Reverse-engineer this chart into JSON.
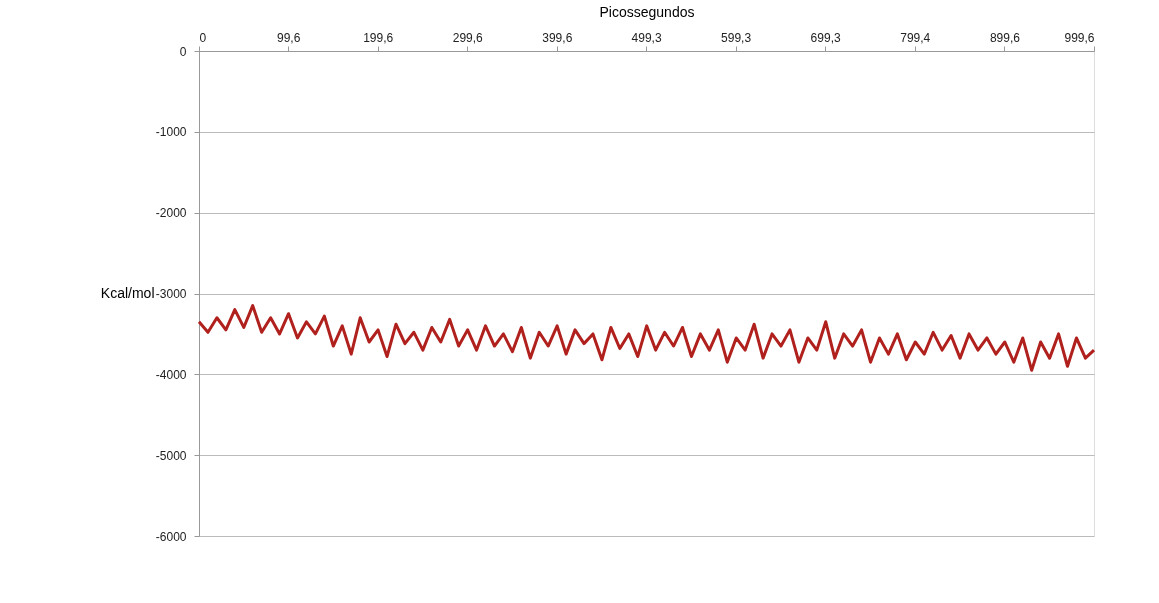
{
  "chart_data": {
    "type": "line",
    "xlabel": "Picossegundos",
    "ylabel": "Kcal/mol",
    "x": [
      0,
      10,
      20,
      30,
      40,
      50,
      60,
      70,
      80,
      90,
      100,
      110,
      120,
      130,
      140,
      150,
      160,
      170,
      180,
      190,
      200,
      210,
      220,
      230,
      240,
      250,
      260,
      270,
      280,
      290,
      300,
      310,
      320,
      330,
      340,
      350,
      360,
      370,
      380,
      390,
      400,
      410,
      420,
      430,
      440,
      450,
      460,
      470,
      480,
      490,
      500,
      510,
      520,
      530,
      540,
      550,
      560,
      570,
      580,
      590,
      600,
      610,
      620,
      630,
      640,
      650,
      660,
      670,
      680,
      690,
      700,
      710,
      720,
      730,
      740,
      750,
      760,
      770,
      780,
      790,
      800,
      810,
      820,
      830,
      840,
      850,
      860,
      870,
      880,
      890,
      900,
      910,
      920,
      930,
      940,
      950,
      960,
      970,
      980,
      990,
      999.6
    ],
    "series": [
      {
        "color": "#b0201c",
        "values": [
          -3350,
          -3480,
          -3300,
          -3450,
          -3200,
          -3420,
          -3150,
          -3480,
          -3300,
          -3500,
          -3250,
          -3550,
          -3350,
          -3500,
          -3280,
          -3650,
          -3400,
          -3750,
          -3300,
          -3600,
          -3450,
          -3780,
          -3380,
          -3620,
          -3480,
          -3700,
          -3420,
          -3600,
          -3320,
          -3650,
          -3450,
          -3700,
          -3400,
          -3650,
          -3500,
          -3720,
          -3420,
          -3800,
          -3480,
          -3650,
          -3400,
          -3750,
          -3450,
          -3620,
          -3500,
          -3820,
          -3420,
          -3680,
          -3500,
          -3780,
          -3400,
          -3700,
          -3480,
          -3650,
          -3420,
          -3780,
          -3500,
          -3700,
          -3450,
          -3850,
          -3550,
          -3700,
          -3380,
          -3800,
          -3500,
          -3650,
          -3450,
          -3850,
          -3550,
          -3700,
          -3350,
          -3800,
          -3500,
          -3650,
          -3450,
          -3850,
          -3550,
          -3750,
          -3500,
          -3820,
          -3600,
          -3750,
          -3480,
          -3700,
          -3520,
          -3800,
          -3500,
          -3700,
          -3550,
          -3750,
          -3600,
          -3850,
          -3550,
          -3950,
          -3600,
          -3800,
          -3500,
          -3900,
          -3550,
          -3800,
          -3700
        ]
      }
    ],
    "xlim": [
      0,
      999.6
    ],
    "xticks": [
      0,
      {
        "value": 99.6,
        "label": "99,6"
      },
      {
        "value": 199.6,
        "label": "199,6"
      },
      {
        "value": 299.6,
        "label": "299,6"
      },
      {
        "value": 399.6,
        "label": "399,6"
      },
      {
        "value": 499.3,
        "label": "499,3"
      },
      {
        "value": 599.3,
        "label": "599,3"
      },
      {
        "value": 699.3,
        "label": "699,3"
      },
      {
        "value": 799.4,
        "label": "799,4"
      },
      {
        "value": 899.6,
        "label": "899,6"
      },
      {
        "value": 999.6,
        "label": "999,6"
      }
    ],
    "ylim": [
      -6000,
      0
    ],
    "yticks": [
      0,
      -1000,
      -2000,
      -3000,
      -4000,
      -5000,
      -6000
    ],
    "grid": "y",
    "legend": false,
    "marker": "none",
    "line_style": "solid"
  }
}
